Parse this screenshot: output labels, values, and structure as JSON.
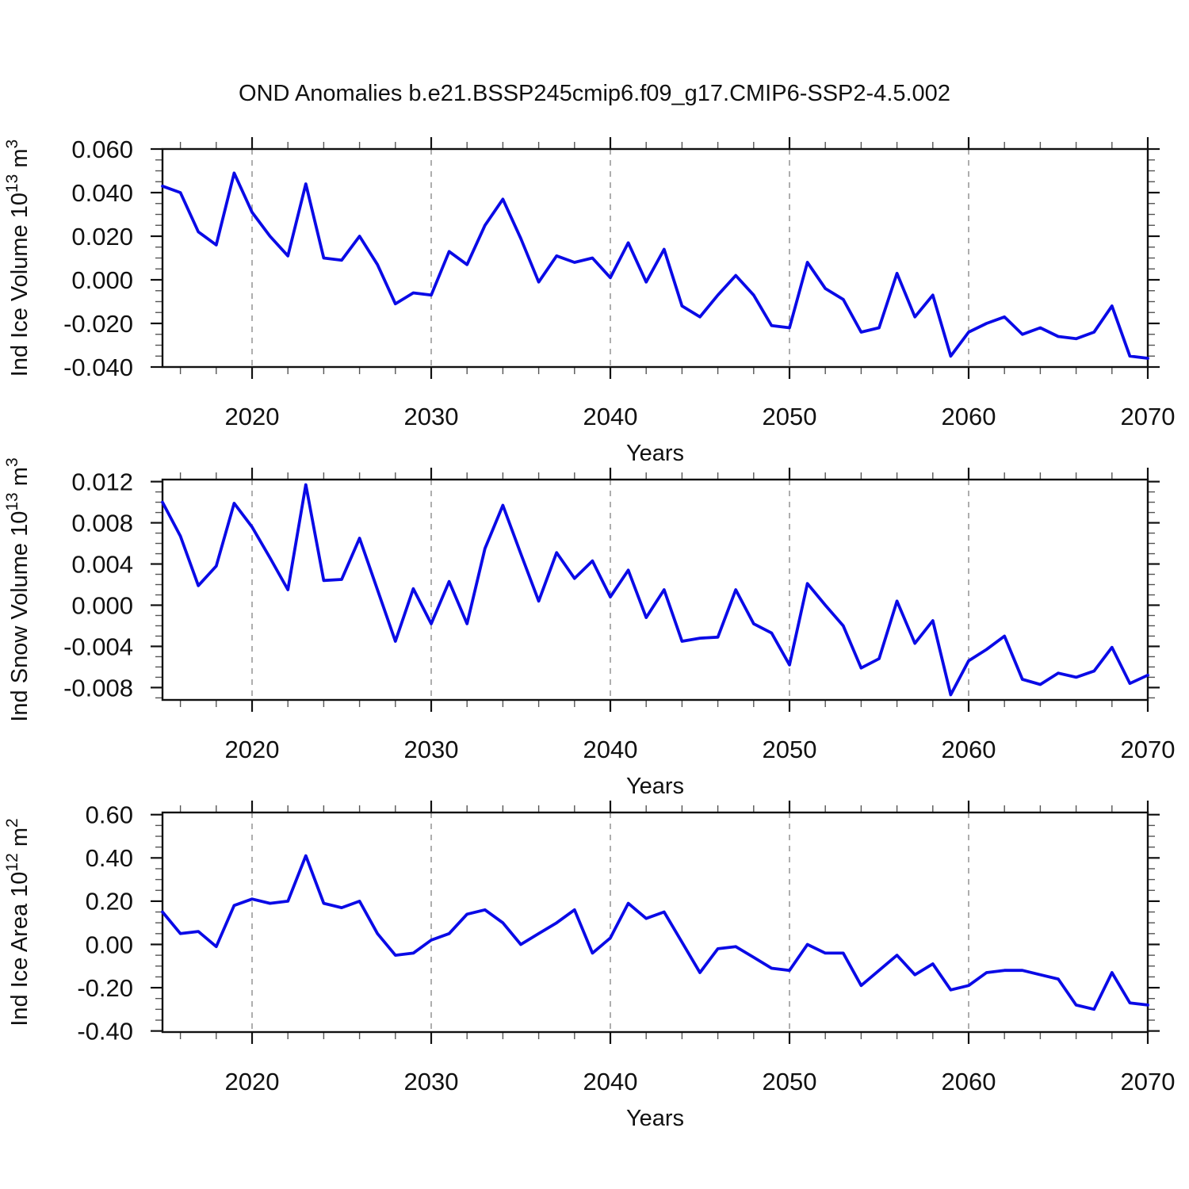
{
  "style": {
    "line_color": "#0a0ae6",
    "grid_color": "#999999",
    "axis_color": "#111111",
    "minor_tick_color": "#555555"
  },
  "chart_data": {
    "type": "line",
    "title": "OND Anomalies b.e21.BSSP245cmip6.f09_g17.CMIP6-SSP2-4.5.002",
    "xlabel": "Years",
    "xlim": [
      2015,
      2070
    ],
    "xticks": {
      "labels": [
        "2020",
        "2030",
        "2040",
        "2050",
        "2060",
        "2070"
      ],
      "values": [
        2020,
        2030,
        2040,
        2050,
        2060,
        2070
      ]
    },
    "x_minor_step_years": 2,
    "gridline_years": [
      2020,
      2030,
      2040,
      2050,
      2060
    ],
    "x": [
      2015,
      2016,
      2017,
      2018,
      2019,
      2020,
      2021,
      2022,
      2023,
      2024,
      2025,
      2026,
      2027,
      2028,
      2029,
      2030,
      2031,
      2032,
      2033,
      2034,
      2035,
      2036,
      2037,
      2038,
      2039,
      2040,
      2041,
      2042,
      2043,
      2044,
      2045,
      2046,
      2047,
      2048,
      2049,
      2050,
      2051,
      2052,
      2053,
      2054,
      2055,
      2056,
      2057,
      2058,
      2059,
      2060,
      2061,
      2062,
      2063,
      2064,
      2065,
      2066,
      2067,
      2068,
      2069,
      2070
    ],
    "panels": [
      {
        "id": "ice-volume",
        "ylabel_text": "Ind Ice Volume 10^13 m^3",
        "ylabel_parts": [
          {
            "t": "Ind Ice Volume 10"
          },
          {
            "t": "13",
            "sup": true
          },
          {
            "t": " m"
          },
          {
            "t": "3",
            "sup": true
          }
        ],
        "ylim": [
          -0.04,
          0.06
        ],
        "ytick_labels": [
          "0.060",
          "0.040",
          "0.020",
          "0.000",
          "-0.020",
          "-0.040"
        ],
        "ytick_values": [
          0.06,
          0.04,
          0.02,
          0.0,
          -0.02,
          -0.04
        ],
        "y_minor_step": 0.005,
        "values": [
          0.043,
          0.04,
          0.022,
          0.016,
          0.049,
          0.031,
          0.02,
          0.011,
          0.044,
          0.01,
          0.009,
          0.02,
          0.007,
          -0.011,
          -0.006,
          -0.007,
          0.013,
          0.007,
          0.025,
          0.037,
          0.019,
          -0.001,
          0.011,
          0.008,
          0.01,
          0.001,
          0.017,
          -0.001,
          0.014,
          -0.012,
          -0.017,
          -0.007,
          0.002,
          -0.007,
          -0.021,
          -0.022,
          0.008,
          -0.004,
          -0.009,
          -0.024,
          -0.022,
          0.003,
          -0.017,
          -0.007,
          -0.035,
          -0.024,
          -0.02,
          -0.017,
          -0.025,
          -0.022,
          -0.026,
          -0.027,
          -0.024,
          -0.012,
          -0.035,
          -0.036
        ]
      },
      {
        "id": "snow-volume",
        "ylabel_text": "Ind Snow Volume 10^13 m^3",
        "ylabel_parts": [
          {
            "t": "Ind Snow Volume 10"
          },
          {
            "t": "13",
            "sup": true
          },
          {
            "t": " m"
          },
          {
            "t": "3",
            "sup": true
          }
        ],
        "ylim": [
          -0.0092,
          0.0122
        ],
        "ytick_labels": [
          "0.012",
          "0.008",
          "0.004",
          "0.000",
          "-0.004",
          "-0.008"
        ],
        "ytick_values": [
          0.012,
          0.008,
          0.004,
          0.0,
          -0.004,
          -0.008
        ],
        "y_minor_step": 0.001,
        "values": [
          0.01,
          0.0067,
          0.0019,
          0.0038,
          0.0099,
          0.0076,
          0.0046,
          0.0015,
          0.0117,
          0.0024,
          0.0025,
          0.0065,
          0.0015,
          -0.0035,
          0.0016,
          -0.0018,
          0.0023,
          -0.0018,
          0.0055,
          0.0097,
          0.005,
          0.0004,
          0.0051,
          0.0026,
          0.0043,
          0.0008,
          0.0034,
          -0.0012,
          0.0015,
          -0.0035,
          -0.0032,
          -0.0031,
          0.0015,
          -0.0018,
          -0.0027,
          -0.0058,
          0.0021,
          0.0,
          -0.002,
          -0.0061,
          -0.0052,
          0.0004,
          -0.0037,
          -0.0015,
          -0.0087,
          -0.0054,
          -0.0043,
          -0.003,
          -0.0072,
          -0.0077,
          -0.0066,
          -0.007,
          -0.0064,
          -0.0041,
          -0.0076,
          -0.0068
        ]
      },
      {
        "id": "ice-area",
        "ylabel_text": "Ind Ice Area 10^12 m^2",
        "ylabel_parts": [
          {
            "t": "Ind Ice Area 10"
          },
          {
            "t": "12",
            "sup": true
          },
          {
            "t": " m"
          },
          {
            "t": "2",
            "sup": true
          }
        ],
        "ylim": [
          -0.405,
          0.61
        ],
        "ytick_labels": [
          "0.60",
          "0.40",
          "0.20",
          "0.00",
          "-0.20",
          "-0.40"
        ],
        "ytick_values": [
          0.6,
          0.4,
          0.2,
          0.0,
          -0.2,
          -0.4
        ],
        "y_minor_step": 0.05,
        "values": [
          0.15,
          0.05,
          0.06,
          -0.01,
          0.18,
          0.21,
          0.19,
          0.2,
          0.41,
          0.19,
          0.17,
          0.2,
          0.05,
          -0.05,
          -0.04,
          0.02,
          0.05,
          0.14,
          0.16,
          0.1,
          0.0,
          0.05,
          0.1,
          0.16,
          -0.04,
          0.03,
          0.19,
          0.12,
          0.15,
          0.01,
          -0.13,
          -0.02,
          -0.01,
          -0.06,
          -0.11,
          -0.12,
          0.0,
          -0.04,
          -0.04,
          -0.19,
          -0.12,
          -0.05,
          -0.14,
          -0.09,
          -0.21,
          -0.19,
          -0.13,
          -0.12,
          -0.12,
          -0.14,
          -0.16,
          -0.28,
          -0.3,
          -0.13,
          -0.27,
          -0.28
        ]
      }
    ]
  }
}
